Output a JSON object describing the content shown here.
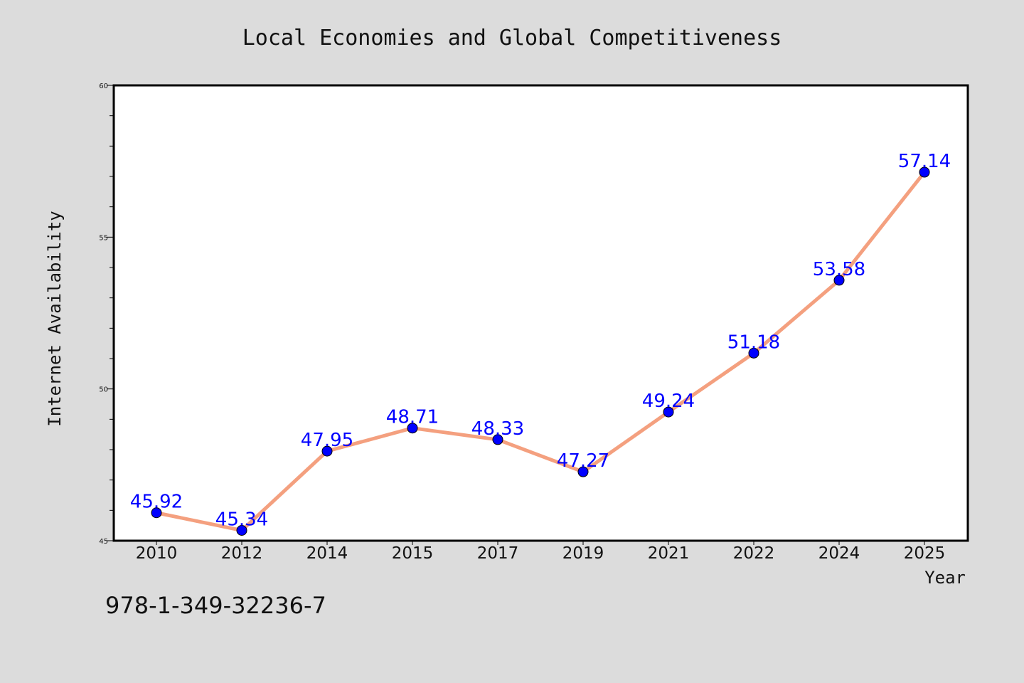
{
  "chart_data": {
    "type": "line",
    "title": "Local Economies and Global Competitiveness",
    "xlabel": "Year",
    "ylabel": "Internet Availability",
    "categories": [
      "2010",
      "2012",
      "2014",
      "2015",
      "2017",
      "2019",
      "2021",
      "2022",
      "2024",
      "2025"
    ],
    "series": [
      {
        "values": [
          45.92,
          45.34,
          47.95,
          48.71,
          48.33,
          47.27,
          49.24,
          51.18,
          53.58,
          57.14
        ],
        "labels": [
          "45.92",
          "45.34",
          "47.95",
          "48.71",
          "48.33",
          "47.27",
          "49.24",
          "51.18",
          "53.58",
          "57.14"
        ]
      }
    ],
    "ylim": [
      45,
      60
    ],
    "yticks": [
      45,
      50,
      55,
      60
    ],
    "grid": false,
    "colors": {
      "line": "#f4a07f",
      "marker": "#0000ff",
      "label": "#0000ff",
      "background": "#dcdcdc",
      "plot_bg": "#ffffff"
    }
  },
  "annotation": {
    "isbn": "978-1-349-32236-7"
  }
}
